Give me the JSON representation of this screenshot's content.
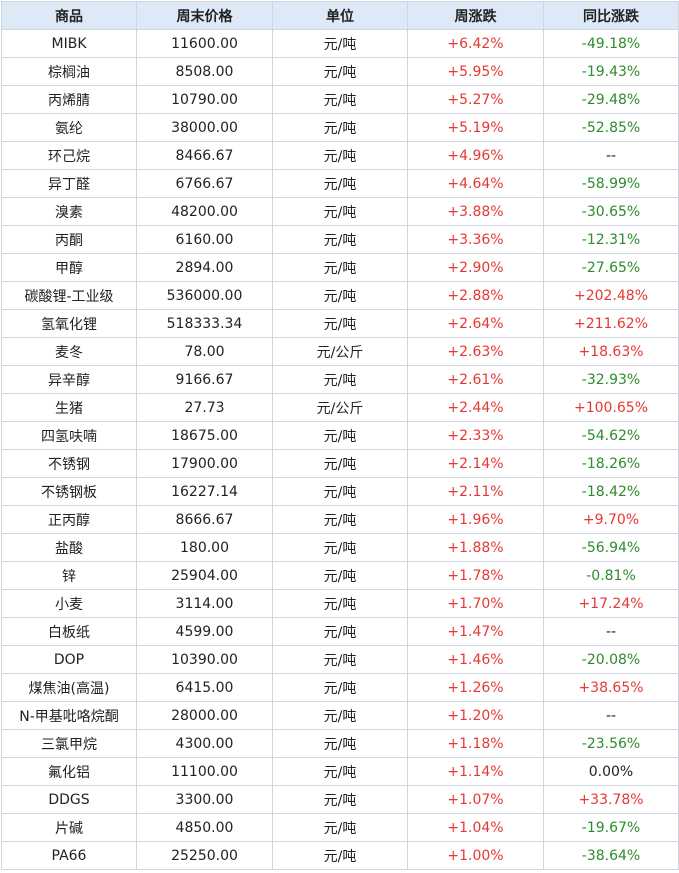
{
  "headers": [
    "商品",
    "周末价格",
    "单位",
    "周涨跌",
    "同比涨跌"
  ],
  "colors": {
    "header_bg": "#dde9f6",
    "border": "#cfd6de",
    "up": "#e53935",
    "down": "#2e8b2e",
    "neutral": "#222222"
  },
  "rows": [
    {
      "name": "MIBK",
      "price": "11600.00",
      "unit": "元/吨",
      "week": "+6.42%",
      "yoy": "-49.18%"
    },
    {
      "name": "棕榈油",
      "price": "8508.00",
      "unit": "元/吨",
      "week": "+5.95%",
      "yoy": "-19.43%"
    },
    {
      "name": "丙烯腈",
      "price": "10790.00",
      "unit": "元/吨",
      "week": "+5.27%",
      "yoy": "-29.48%"
    },
    {
      "name": "氨纶",
      "price": "38000.00",
      "unit": "元/吨",
      "week": "+5.19%",
      "yoy": "-52.85%"
    },
    {
      "name": "环己烷",
      "price": "8466.67",
      "unit": "元/吨",
      "week": "+4.96%",
      "yoy": "--"
    },
    {
      "name": "异丁醛",
      "price": "6766.67",
      "unit": "元/吨",
      "week": "+4.64%",
      "yoy": "-58.99%"
    },
    {
      "name": "溴素",
      "price": "48200.00",
      "unit": "元/吨",
      "week": "+3.88%",
      "yoy": "-30.65%"
    },
    {
      "name": "丙酮",
      "price": "6160.00",
      "unit": "元/吨",
      "week": "+3.36%",
      "yoy": "-12.31%"
    },
    {
      "name": "甲醇",
      "price": "2894.00",
      "unit": "元/吨",
      "week": "+2.90%",
      "yoy": "-27.65%"
    },
    {
      "name": "碳酸锂-工业级",
      "price": "536000.00",
      "unit": "元/吨",
      "week": "+2.88%",
      "yoy": "+202.48%"
    },
    {
      "name": "氢氧化锂",
      "price": "518333.34",
      "unit": "元/吨",
      "week": "+2.64%",
      "yoy": "+211.62%"
    },
    {
      "name": "麦冬",
      "price": "78.00",
      "unit": "元/公斤",
      "week": "+2.63%",
      "yoy": "+18.63%"
    },
    {
      "name": "异辛醇",
      "price": "9166.67",
      "unit": "元/吨",
      "week": "+2.61%",
      "yoy": "-32.93%"
    },
    {
      "name": "生猪",
      "price": "27.73",
      "unit": "元/公斤",
      "week": "+2.44%",
      "yoy": "+100.65%"
    },
    {
      "name": "四氢呋喃",
      "price": "18675.00",
      "unit": "元/吨",
      "week": "+2.33%",
      "yoy": "-54.62%"
    },
    {
      "name": "不锈钢",
      "price": "17900.00",
      "unit": "元/吨",
      "week": "+2.14%",
      "yoy": "-18.26%"
    },
    {
      "name": "不锈钢板",
      "price": "16227.14",
      "unit": "元/吨",
      "week": "+2.11%",
      "yoy": "-18.42%"
    },
    {
      "name": "正丙醇",
      "price": "8666.67",
      "unit": "元/吨",
      "week": "+1.96%",
      "yoy": "+9.70%"
    },
    {
      "name": "盐酸",
      "price": "180.00",
      "unit": "元/吨",
      "week": "+1.88%",
      "yoy": "-56.94%"
    },
    {
      "name": "锌",
      "price": "25904.00",
      "unit": "元/吨",
      "week": "+1.78%",
      "yoy": "-0.81%"
    },
    {
      "name": "小麦",
      "price": "3114.00",
      "unit": "元/吨",
      "week": "+1.70%",
      "yoy": "+17.24%"
    },
    {
      "name": "白板纸",
      "price": "4599.00",
      "unit": "元/吨",
      "week": "+1.47%",
      "yoy": "--"
    },
    {
      "name": "DOP",
      "price": "10390.00",
      "unit": "元/吨",
      "week": "+1.46%",
      "yoy": "-20.08%"
    },
    {
      "name": "煤焦油(高温)",
      "price": "6415.00",
      "unit": "元/吨",
      "week": "+1.26%",
      "yoy": "+38.65%"
    },
    {
      "name": "N-甲基吡咯烷酮",
      "price": "28000.00",
      "unit": "元/吨",
      "week": "+1.20%",
      "yoy": "--"
    },
    {
      "name": "三氯甲烷",
      "price": "4300.00",
      "unit": "元/吨",
      "week": "+1.18%",
      "yoy": "-23.56%"
    },
    {
      "name": "氟化铝",
      "price": "11100.00",
      "unit": "元/吨",
      "week": "+1.14%",
      "yoy": "0.00%"
    },
    {
      "name": "DDGS",
      "price": "3300.00",
      "unit": "元/吨",
      "week": "+1.07%",
      "yoy": "+33.78%"
    },
    {
      "name": "片碱",
      "price": "4850.00",
      "unit": "元/吨",
      "week": "+1.04%",
      "yoy": "-19.67%"
    },
    {
      "name": "PA66",
      "price": "25250.00",
      "unit": "元/吨",
      "week": "+1.00%",
      "yoy": "-38.64%"
    }
  ]
}
